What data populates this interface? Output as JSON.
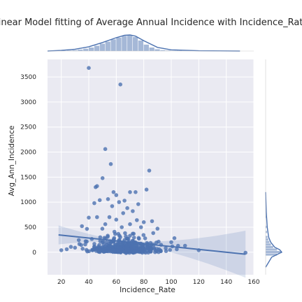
{
  "chart_data": {
    "type": "scatter",
    "title": "Linear Model fitting of Average Annual Incidence with Incidence_Rate",
    "xlabel": "Incidence_Rate",
    "ylabel": "Avg_Ann_Incidence",
    "xlim": [
      10,
      160
    ],
    "ylim": [
      -450,
      3850
    ],
    "xticks": [
      "20",
      "40",
      "60",
      "80",
      "100",
      "120",
      "140",
      "160"
    ],
    "yticks": [
      "0",
      "500",
      "1000",
      "1500",
      "2000",
      "2500",
      "3000",
      "3500"
    ],
    "grid": true,
    "colors": {
      "point": "#4c72b0",
      "background": "#eaeaf2",
      "grid": "#ffffff"
    },
    "outliers": [
      [
        40,
        3680
      ],
      [
        63,
        3350
      ],
      [
        52,
        2060
      ],
      [
        56,
        1760
      ],
      [
        50,
        1480
      ],
      [
        84,
        1630
      ],
      [
        46,
        1320
      ],
      [
        45,
        1300
      ],
      [
        58,
        1200
      ],
      [
        60,
        1140
      ],
      [
        70,
        1200
      ],
      [
        74,
        1200
      ],
      [
        82,
        1250
      ],
      [
        54,
        1060
      ],
      [
        66,
        1030
      ],
      [
        48,
        1040
      ],
      [
        62,
        1000
      ],
      [
        76,
        960
      ],
      [
        44,
        980
      ],
      [
        57,
        920
      ],
      [
        68,
        880
      ],
      [
        72,
        820
      ],
      [
        65,
        780
      ],
      [
        55,
        700
      ],
      [
        40,
        690
      ],
      [
        46,
        700
      ],
      [
        60,
        650
      ],
      [
        75,
        640
      ],
      [
        80,
        600
      ],
      [
        86,
        620
      ],
      [
        52,
        560
      ],
      [
        70,
        560
      ],
      [
        35,
        520
      ],
      [
        64,
        500
      ],
      [
        78,
        500
      ],
      [
        90,
        470
      ],
      [
        100,
        200
      ],
      [
        110,
        130
      ],
      [
        154,
        -10
      ],
      [
        20,
        40
      ],
      [
        24,
        60
      ],
      [
        30,
        90
      ],
      [
        96,
        80
      ],
      [
        104,
        60
      ],
      [
        120,
        40
      ]
    ],
    "regression": {
      "x": [
        18,
        154
      ],
      "y": [
        345,
        -40
      ]
    },
    "marginal_x": {
      "bins": [
        22,
        26,
        30,
        34,
        38,
        42,
        46,
        50,
        54,
        58,
        62,
        66,
        70,
        74,
        78,
        82,
        86,
        90,
        94,
        98,
        102,
        106
      ],
      "counts": [
        1,
        2,
        3,
        5,
        8,
        12,
        18,
        25,
        32,
        40,
        46,
        52,
        55,
        48,
        36,
        22,
        12,
        6,
        3,
        2,
        1,
        1
      ],
      "kde_x": [
        10,
        20,
        30,
        40,
        50,
        60,
        66,
        70,
        74,
        80,
        90,
        100,
        120,
        150
      ],
      "kde_y": [
        0,
        2,
        6,
        14,
        28,
        44,
        52,
        53,
        49,
        34,
        12,
        4,
        1,
        0
      ]
    },
    "marginal_y": {
      "bins": [
        -50,
        0,
        50,
        100,
        150,
        200,
        250,
        300,
        400,
        500,
        700,
        900
      ],
      "counts": [
        60,
        85,
        60,
        40,
        28,
        20,
        14,
        10,
        7,
        5,
        3,
        2
      ],
      "kde_y": [
        -300,
        -100,
        0,
        50,
        100,
        200,
        300,
        500,
        800,
        1200
      ],
      "kde_x": [
        0,
        30,
        80,
        70,
        45,
        25,
        15,
        8,
        3,
        0
      ]
    }
  }
}
